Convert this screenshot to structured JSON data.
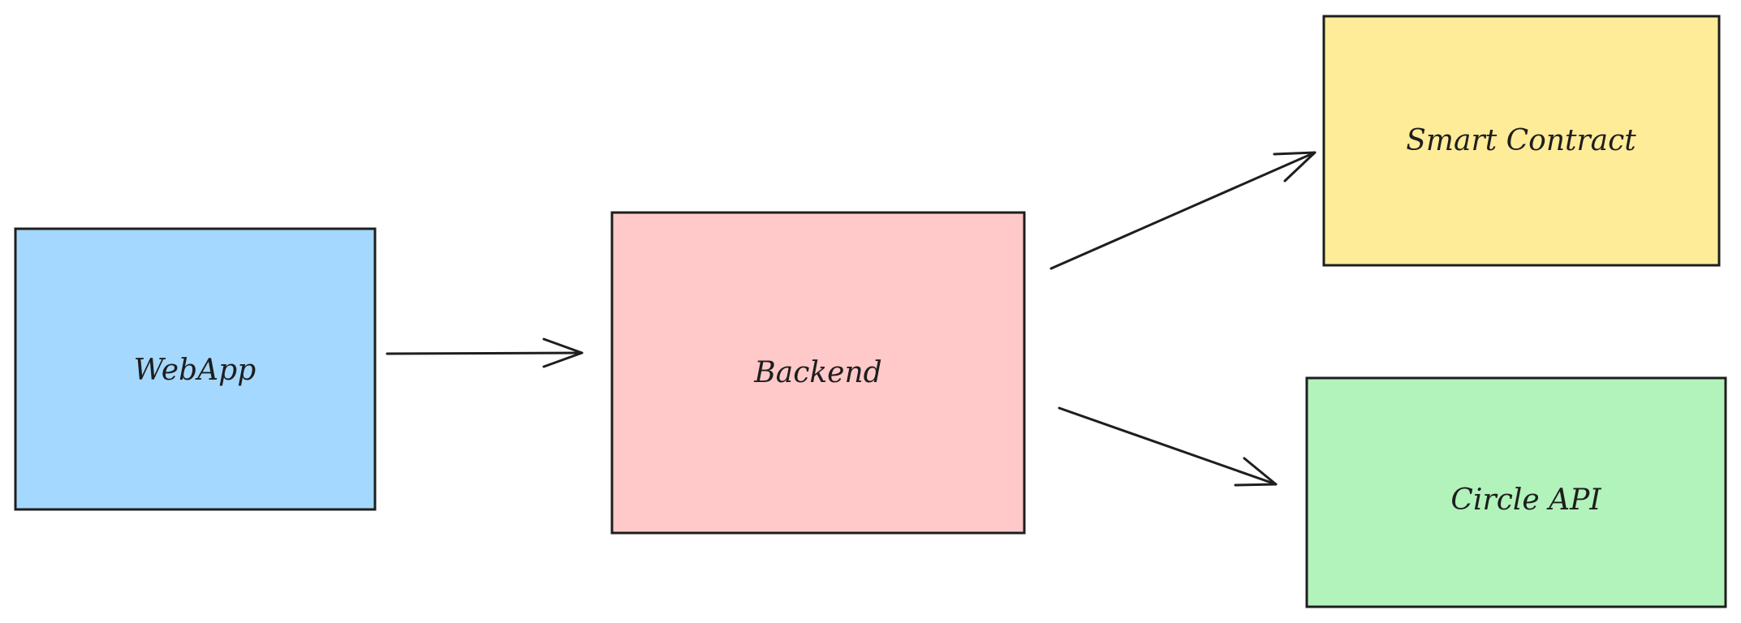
{
  "nodes": {
    "webapp": {
      "label": "WebApp",
      "color": "#a5d8ff"
    },
    "backend": {
      "label": "Backend",
      "color": "#ffc9c9"
    },
    "smart_contract": {
      "label": "Smart Contract",
      "color": "#ffec99"
    },
    "circle_api": {
      "label": "Circle API",
      "color": "#b2f2bb"
    }
  },
  "edges": [
    {
      "from": "webapp",
      "to": "backend"
    },
    {
      "from": "backend",
      "to": "smart_contract"
    },
    {
      "from": "backend",
      "to": "circle_api"
    }
  ],
  "stroke_color": "#1e1e1e"
}
